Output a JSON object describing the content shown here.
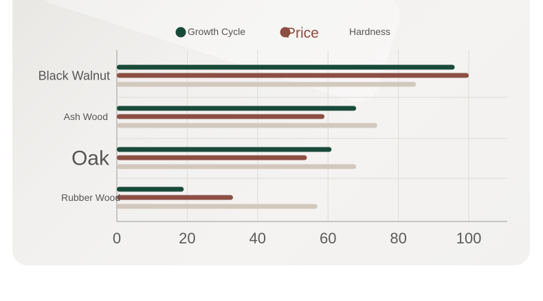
{
  "chart_data": {
    "type": "bar",
    "orientation": "horizontal",
    "categories": [
      "Black Walnut",
      "Ash Wood",
      "Oak",
      "Rubber Wood"
    ],
    "series": [
      {
        "name": "Growth Cycle",
        "values": [
          96,
          68,
          61,
          19
        ],
        "color": "#184a3a"
      },
      {
        "name": "Price",
        "values": [
          100,
          59,
          54,
          33
        ],
        "color": "#8c4f44"
      },
      {
        "name": "Hardness",
        "values": [
          85,
          74,
          68,
          57
        ],
        "color": "#d2c8be"
      }
    ],
    "xlim": [
      0,
      110
    ],
    "xticks": [
      0,
      20,
      40,
      60,
      80,
      100
    ],
    "grid": true,
    "legend": "top"
  }
}
